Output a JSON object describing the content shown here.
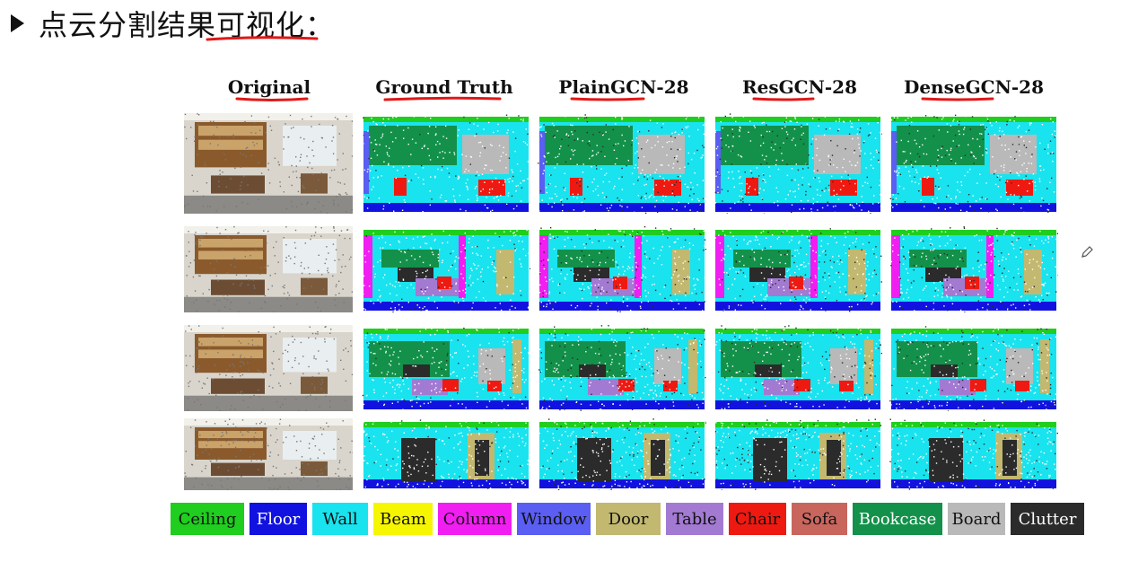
{
  "slide": {
    "title": "点云分割结果可视化：",
    "bullet_icon": "arrow-bullet-icon",
    "pen_icon": "pen-cursor-icon"
  },
  "figure": {
    "columns": [
      "Original",
      "Ground Truth",
      "PlainGCN-28",
      "ResGCN-28",
      "DenseGCN-28"
    ],
    "row_count": 4,
    "legend": [
      {
        "label": "Ceiling",
        "bg": "#1fce1f",
        "fg": "#111111"
      },
      {
        "label": "Floor",
        "bg": "#1212e0",
        "fg": "#ffffff"
      },
      {
        "label": "Wall",
        "bg": "#19e3ee",
        "fg": "#111111"
      },
      {
        "label": "Beam",
        "bg": "#f6f600",
        "fg": "#111111"
      },
      {
        "label": "Column",
        "bg": "#f01ef0",
        "fg": "#111111"
      },
      {
        "label": "Window",
        "bg": "#5a5ef2",
        "fg": "#111111"
      },
      {
        "label": "Door",
        "bg": "#c2b870",
        "fg": "#111111"
      },
      {
        "label": "Table",
        "bg": "#a27ad2",
        "fg": "#111111"
      },
      {
        "label": "Chair",
        "bg": "#ee1a12",
        "fg": "#111111"
      },
      {
        "label": "Sofa",
        "bg": "#c8665e",
        "fg": "#111111"
      },
      {
        "label": "Bookcase",
        "bg": "#13914a",
        "fg": "#ffffff"
      },
      {
        "label": "Board",
        "bg": "#b9b9b9",
        "fg": "#111111"
      },
      {
        "label": "Clutter",
        "bg": "#2b2b2b",
        "fg": "#ffffff"
      }
    ]
  }
}
